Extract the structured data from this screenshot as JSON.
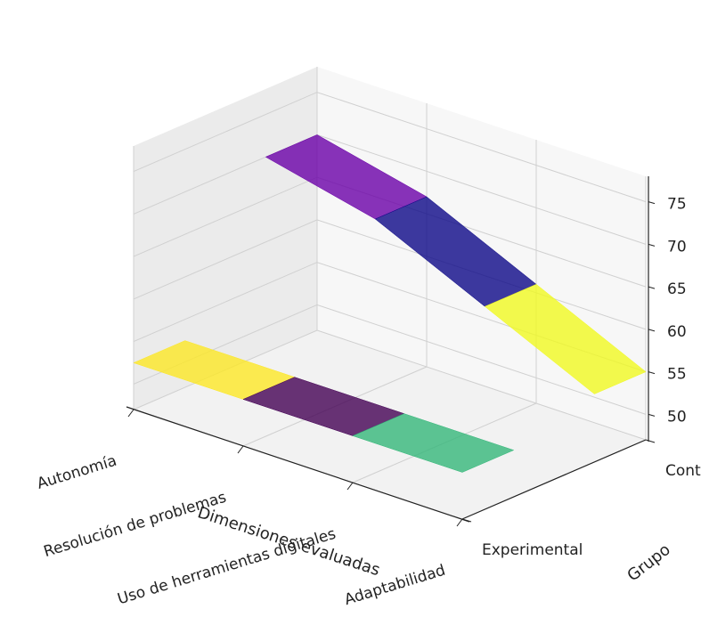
{
  "chart_data": {
    "type": "surface3d",
    "xlabel": "Dimensiones evaluadas",
    "ylabel": "Grupo",
    "zlabel": "",
    "x_categories": [
      "Autonomía",
      "Resolución de problemas",
      "Uso de herramientas digitales",
      "Adaptabilidad"
    ],
    "y_categories": [
      "Experimental",
      "Control"
    ],
    "z_ticks": [
      "50",
      "55",
      "60",
      "65",
      "70",
      "75"
    ],
    "zlim": [
      47,
      78
    ],
    "grid": true,
    "series": [
      {
        "group": "Experimental",
        "x": [
          "Autonomía",
          "Resolución de problemas",
          "Uso de herramientas digitales",
          "Adaptabilidad"
        ],
        "y": [
          52.5,
          52.5,
          52.5,
          52.5
        ],
        "facet_colors": [
          "#fde725",
          "#440154",
          "#35b779"
        ],
        "opacity": 0.8
      },
      {
        "group": "Control",
        "x": [
          "Autonomía",
          "Resolución de problemas",
          "Uso de herramientas digitales",
          "Adaptabilidad"
        ],
        "y": [
          70,
          67,
          61,
          55
        ],
        "facet_colors": [
          "#6a00a8",
          "#0d0887",
          "#f0f921"
        ],
        "opacity": 0.8
      }
    ]
  }
}
